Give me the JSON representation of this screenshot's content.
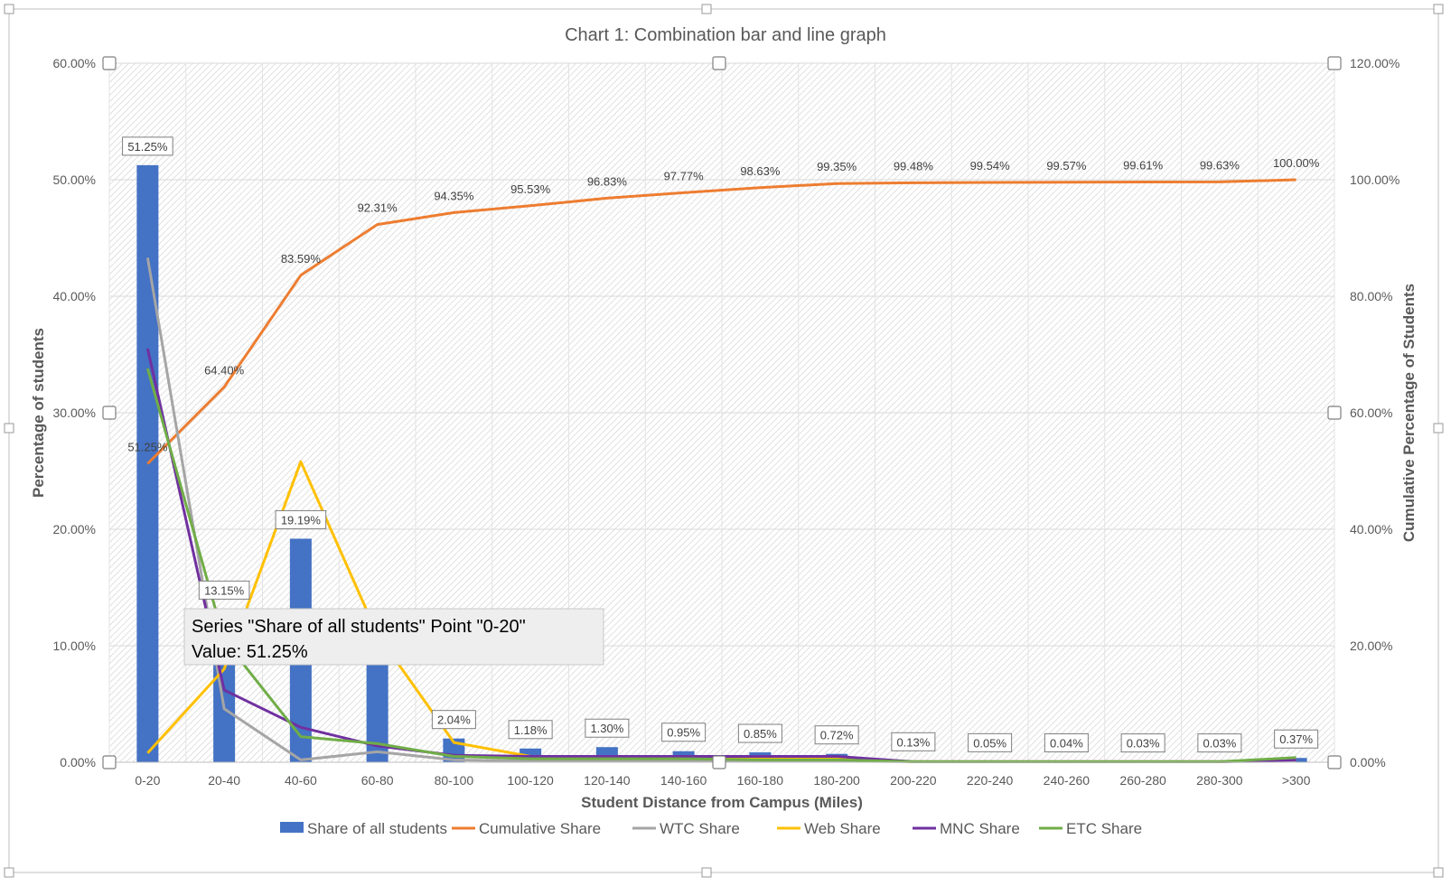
{
  "colors": {
    "bar": "#4472C4",
    "cumulative": "#ED7D31",
    "wtc": "#A5A5A5",
    "web": "#FFC000",
    "mnc": "#7030A0",
    "etc": "#70AD47",
    "axis_text": "#595959",
    "title_text": "#595959",
    "hatch": "#d0d0d0"
  },
  "tooltip": {
    "line1": "Series \"Share of all students\" Point \"0-20\"",
    "line2": "Value: 51.25%"
  },
  "chart_data": {
    "type": "bar",
    "title": "Chart 1:  Combination bar and line graph",
    "xlabel": "Student Distance from Campus (Miles)",
    "ylabel": "Percentage of students",
    "y2label": "Cumulative Percentage of Students",
    "ylim": [
      0,
      60
    ],
    "y2lim": [
      0,
      120
    ],
    "yticks": [
      "0.00%",
      "10.00%",
      "20.00%",
      "30.00%",
      "40.00%",
      "50.00%",
      "60.00%"
    ],
    "y2ticks": [
      "0.00%",
      "20.00%",
      "40.00%",
      "60.00%",
      "80.00%",
      "100.00%",
      "120.00%"
    ],
    "grid": true,
    "legend_position": "bottom",
    "categories": [
      "0-20",
      "20-40",
      "40-60",
      "60-80",
      "80-100",
      "100-120",
      "120-140",
      "140-160",
      "160-180",
      "180-200",
      "200-220",
      "220-240",
      "240-260",
      "260-280",
      "280-300",
      ">300"
    ],
    "series": [
      {
        "name": "Share of all students",
        "type": "bar",
        "axis": "left",
        "values": [
          51.25,
          13.15,
          19.19,
          8.72,
          2.04,
          1.18,
          1.3,
          0.95,
          0.85,
          0.72,
          0.13,
          0.05,
          0.04,
          0.03,
          0.03,
          0.37
        ],
        "labels": [
          "51.25%",
          "13.15%",
          "19.19%",
          "",
          "2.04%",
          "1.18%",
          "1.30%",
          "0.95%",
          "0.85%",
          "0.72%",
          "0.13%",
          "0.05%",
          "0.04%",
          "0.03%",
          "0.03%",
          "0.37%"
        ]
      },
      {
        "name": "Cumulative Share",
        "type": "line",
        "axis": "right",
        "values": [
          51.25,
          64.4,
          83.59,
          92.31,
          94.35,
          95.53,
          96.83,
          97.77,
          98.63,
          99.35,
          99.48,
          99.54,
          99.57,
          99.61,
          99.63,
          100.0
        ],
        "labels": [
          "51.25%",
          "64.40%",
          "83.59%",
          "92.31%",
          "94.35%",
          "95.53%",
          "96.83%",
          "97.77%",
          "98.63%",
          "99.35%",
          "99.48%",
          "99.54%",
          "99.57%",
          "99.61%",
          "99.63%",
          "100.00%"
        ]
      },
      {
        "name": "WTC Share",
        "type": "line",
        "axis": "left",
        "values": [
          43.3,
          4.6,
          0.2,
          0.9,
          0.2,
          0.1,
          0.1,
          0.1,
          0.1,
          0.1,
          0.05,
          0.05,
          0.05,
          0.05,
          0.05,
          0.1
        ]
      },
      {
        "name": "Web Share",
        "type": "line",
        "axis": "left",
        "values": [
          0.8,
          8.0,
          25.8,
          11.0,
          1.7,
          0.5,
          0.5,
          0.4,
          0.3,
          0.3,
          0.05,
          0.05,
          0.05,
          0.05,
          0.05,
          0.3
        ]
      },
      {
        "name": "MNC Share",
        "type": "line",
        "axis": "left",
        "values": [
          35.5,
          6.2,
          3.0,
          1.4,
          0.6,
          0.5,
          0.5,
          0.5,
          0.5,
          0.5,
          0.05,
          0.05,
          0.05,
          0.05,
          0.05,
          0.2
        ]
      },
      {
        "name": "ETC Share",
        "type": "line",
        "axis": "left",
        "values": [
          33.8,
          10.5,
          2.2,
          1.6,
          0.5,
          0.3,
          0.3,
          0.3,
          0.2,
          0.2,
          0.05,
          0.05,
          0.05,
          0.05,
          0.05,
          0.4
        ]
      }
    ]
  }
}
